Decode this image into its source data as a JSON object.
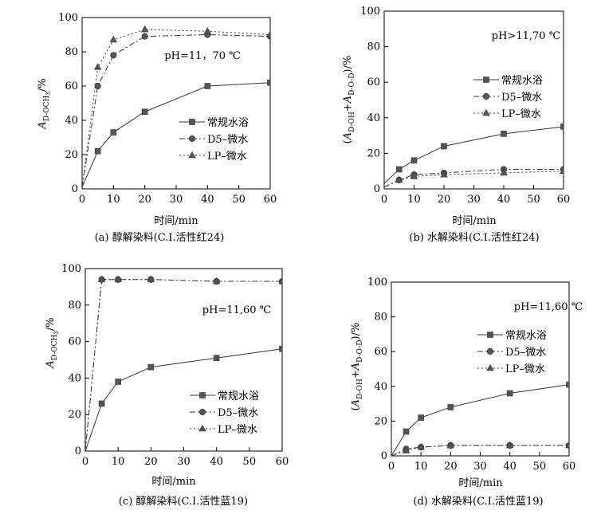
{
  "chart_data": [
    {
      "id": "a",
      "type": "line",
      "caption": "(a) 醇解染料(C.I.活性红24)",
      "xlabel": "时间/min",
      "ylabel": "A_{D-OCH3}/%",
      "ylabel_parts": {
        "base": "A",
        "sub": "D-OCH",
        "subsub": "3",
        "suffix": "/%"
      },
      "condition": "pH=11，70 ℃",
      "xlim": [
        0,
        60
      ],
      "ylim": [
        0,
        100
      ],
      "xticks": [
        0,
        10,
        20,
        30,
        40,
        50,
        60
      ],
      "yticks": [
        0,
        20,
        40,
        60,
        80,
        100
      ],
      "legend_position": "lower-right",
      "series": [
        {
          "name": "常规水浴",
          "style": "solid",
          "marker": "square",
          "x": [
            0,
            5,
            10,
            20,
            40,
            60
          ],
          "y": [
            1,
            22,
            33,
            45,
            60,
            62
          ]
        },
        {
          "name": "D5–微水",
          "style": "dashed",
          "marker": "circle",
          "x": [
            0,
            5,
            10,
            20,
            40,
            60
          ],
          "y": [
            1,
            60,
            78,
            89,
            90,
            89
          ]
        },
        {
          "name": "LP–微水",
          "style": "dotted",
          "marker": "triangle",
          "x": [
            0,
            5,
            10,
            20,
            40,
            60
          ],
          "y": [
            1,
            71,
            87,
            93,
            92,
            90
          ]
        }
      ]
    },
    {
      "id": "b",
      "type": "line",
      "caption": "(b) 水解染料(C.I.活性红24)",
      "xlabel": "时间/min",
      "ylabel": "(A_{D-OH}+A_{D-O-D})/%",
      "ylabel_parts": {
        "open": "(",
        "a1": "A",
        "sub1": "D-OH",
        "plus": "+",
        "a2": "A",
        "sub2": "D-O-D",
        "close": ")/%"
      },
      "condition": "pH>11,70 ℃",
      "xlim": [
        0,
        60
      ],
      "ylim": [
        0,
        100
      ],
      "xticks": [
        0,
        10,
        20,
        30,
        40,
        50,
        60
      ],
      "yticks": [
        0,
        20,
        40,
        60,
        80,
        100
      ],
      "legend_position": "upper-right",
      "series": [
        {
          "name": "常规水浴",
          "style": "solid",
          "marker": "square",
          "x": [
            0,
            5,
            10,
            20,
            40,
            60
          ],
          "y": [
            3,
            11,
            16,
            24,
            31,
            35
          ]
        },
        {
          "name": "D5–微水",
          "style": "dashed",
          "marker": "circle",
          "x": [
            0,
            5,
            10,
            20,
            40,
            60
          ],
          "y": [
            1,
            5,
            8,
            9,
            11,
            11
          ]
        },
        {
          "name": "LP–微水",
          "style": "dotted",
          "marker": "triangle",
          "x": [
            0,
            5,
            10,
            20,
            40,
            60
          ],
          "y": [
            1,
            5,
            7,
            8,
            9,
            10
          ]
        }
      ]
    },
    {
      "id": "c",
      "type": "line",
      "caption": "(c) 醇解染料(C.I.活性蓝19)",
      "xlabel": "时间/min",
      "ylabel": "A_{D-OCH3}/%",
      "ylabel_parts": {
        "base": "A",
        "sub": "D-OCH",
        "subsub": "3",
        "suffix": "/%"
      },
      "condition": "pH=11,60 ℃",
      "xlim": [
        0,
        60
      ],
      "ylim": [
        0,
        100
      ],
      "xticks": [
        0,
        10,
        20,
        30,
        40,
        50,
        60
      ],
      "yticks": [
        0,
        20,
        40,
        60,
        80,
        100
      ],
      "legend_position": "lower-right",
      "series": [
        {
          "name": "常规水浴",
          "style": "solid",
          "marker": "square",
          "x": [
            0,
            5,
            10,
            20,
            40,
            60
          ],
          "y": [
            0,
            26,
            38,
            46,
            51,
            56
          ]
        },
        {
          "name": "D5–微水",
          "style": "dashed",
          "marker": "circle",
          "x": [
            0,
            5,
            10,
            20,
            40,
            60
          ],
          "y": [
            0,
            94,
            94,
            94,
            93,
            93
          ]
        },
        {
          "name": "LP–微水",
          "style": "dotted",
          "marker": "triangle",
          "x": [
            0,
            5,
            10,
            20,
            40,
            60
          ],
          "y": [
            0,
            94,
            94,
            94,
            93,
            93
          ]
        }
      ]
    },
    {
      "id": "d",
      "type": "line",
      "caption": "(d) 水解染料(C.I.活性蓝19)",
      "xlabel": "时间/min",
      "ylabel": "(A_{D-OH}+A_{D-O-D})/%",
      "ylabel_parts": {
        "open": "(",
        "a1": "A",
        "sub1": "D-OH",
        "plus": "+",
        "a2": "A",
        "sub2": "D-O-D",
        "close": ")/%"
      },
      "condition": "pH=11,60 ℃",
      "xlim": [
        0,
        60
      ],
      "ylim": [
        0,
        100
      ],
      "xticks": [
        0,
        10,
        20,
        30,
        40,
        50,
        60
      ],
      "yticks": [
        0,
        20,
        40,
        60,
        80,
        100
      ],
      "legend_position": "upper-right",
      "series": [
        {
          "name": "常规水浴",
          "style": "solid",
          "marker": "square",
          "x": [
            0,
            5,
            10,
            20,
            40,
            60
          ],
          "y": [
            0,
            14,
            22,
            28,
            36,
            41
          ]
        },
        {
          "name": "D5–微水",
          "style": "dashed",
          "marker": "circle",
          "x": [
            0,
            5,
            10,
            20,
            40,
            60
          ],
          "y": [
            0,
            4,
            5,
            6,
            6,
            6
          ]
        },
        {
          "name": "LP–微水",
          "style": "dotted",
          "marker": "triangle",
          "x": [
            0,
            5,
            10,
            20,
            40,
            60
          ],
          "y": [
            0,
            3,
            5,
            6,
            6,
            6
          ]
        }
      ]
    }
  ]
}
